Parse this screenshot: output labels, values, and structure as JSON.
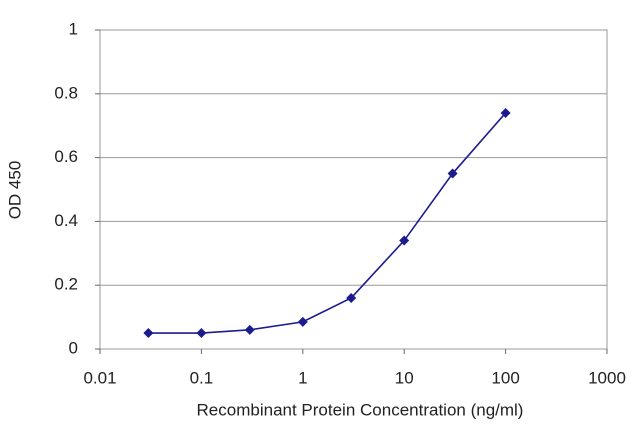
{
  "chart_data": {
    "type": "line",
    "x_label": "Recombinant Protein Concentration (ng/ml)",
    "y_label": "OD 450",
    "x": [
      0.03,
      0.1,
      0.3,
      1,
      3,
      10,
      30,
      100
    ],
    "values": [
      0.05,
      0.05,
      0.06,
      0.085,
      0.16,
      0.34,
      0.55,
      0.74
    ],
    "color": "#1c1c8f",
    "xscale": "log",
    "xlim": [
      0.01,
      1000
    ],
    "xticks": [
      0.01,
      0.1,
      1,
      10,
      100,
      1000
    ],
    "ylim": [
      0,
      1
    ],
    "yticks": [
      0,
      0.2,
      0.4,
      0.6,
      0.8,
      1
    ],
    "grid": true
  }
}
